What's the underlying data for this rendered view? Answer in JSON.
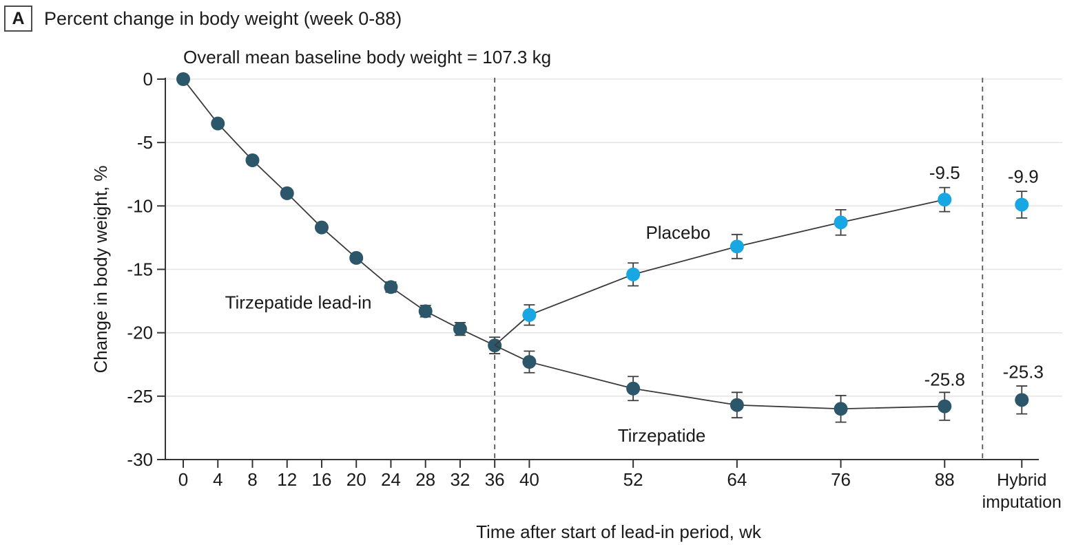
{
  "panel": {
    "label": "A",
    "title": "Percent change in body weight (week 0-88)"
  },
  "chart_data": {
    "type": "line",
    "subtitle": "Overall mean baseline body weight = 107.3 kg",
    "xlabel": "Time after start of lead-in period, wk",
    "ylabel": "Change in body weight, %",
    "ylim": [
      -30,
      0
    ],
    "yticks": [
      0,
      -5,
      -10,
      -15,
      -20,
      -25,
      -30
    ],
    "xticks": [
      0,
      4,
      8,
      12,
      16,
      20,
      24,
      28,
      32,
      36,
      40,
      52,
      64,
      76,
      88
    ],
    "hybrid_tick_label_lines": [
      "Hybrid",
      "imputation"
    ],
    "grid": true,
    "dashed_week": 36,
    "legend_position": "inline-labels",
    "colors": {
      "tirzepatide": "#2C5669",
      "placebo": "#18A7E3",
      "line": "#3A3A3A",
      "error": "#3D3D3D",
      "axis": "#333333",
      "grid": "#E5E5E5",
      "dash": "#555555",
      "text": "#1A1A1A"
    },
    "series": [
      {
        "name": "Tirzepatide lead-in",
        "color_key": "tirzepatide",
        "x": [
          0,
          4,
          8,
          12,
          16,
          20,
          24,
          28,
          32,
          36
        ],
        "y": [
          0,
          -3.5,
          -6.4,
          -9.0,
          -11.7,
          -14.1,
          -16.4,
          -18.3,
          -19.7,
          -21.0
        ],
        "err": [
          0,
          0,
          0,
          0.2,
          0.25,
          0.3,
          0.4,
          0.45,
          0.5,
          0.65
        ]
      },
      {
        "name": "Placebo",
        "color_key": "placebo",
        "connect_from": {
          "week": 36,
          "value": -21.0
        },
        "x": [
          40,
          52,
          64,
          76,
          88
        ],
        "y": [
          -18.6,
          -15.4,
          -13.2,
          -11.3,
          -9.5
        ],
        "err": [
          0.8,
          0.9,
          0.95,
          1.0,
          0.95
        ],
        "end_label": "-9.5",
        "hybrid": {
          "value": -9.9,
          "err": 1.05,
          "label": "-9.9"
        }
      },
      {
        "name": "Tirzepatide",
        "color_key": "tirzepatide",
        "connect_from": {
          "week": 36,
          "value": -21.0
        },
        "x": [
          40,
          52,
          64,
          76,
          88
        ],
        "y": [
          -22.3,
          -24.4,
          -25.7,
          -26.0,
          -25.8
        ],
        "err": [
          0.85,
          0.95,
          1.0,
          1.05,
          1.1
        ],
        "end_label": "-25.8",
        "hybrid": {
          "value": -25.3,
          "err": 1.1,
          "label": "-25.3"
        }
      }
    ],
    "series_labels": [
      {
        "text": "Tirzepatide lead-in",
        "week": 13.3,
        "value": -17.6
      },
      {
        "text": "Placebo",
        "week": 57.2,
        "value": -12.1
      },
      {
        "text": "Tirzepatide",
        "week": 55.3,
        "value": -28.1
      }
    ]
  }
}
